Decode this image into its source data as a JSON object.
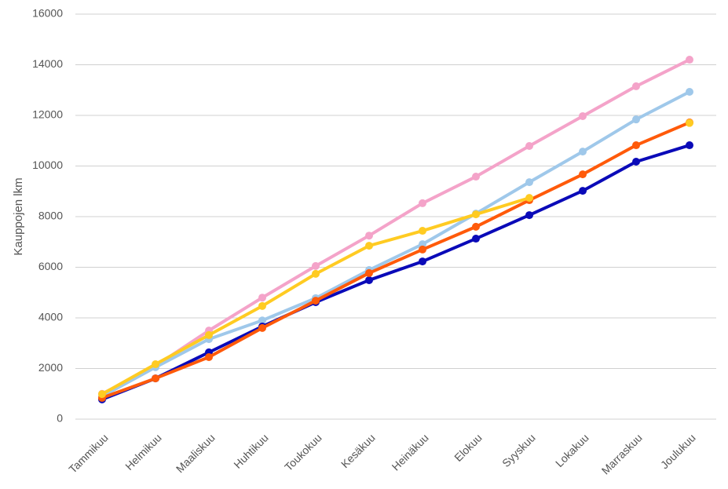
{
  "chart_data": {
    "type": "line",
    "y_label": "Kauppojen lkm",
    "categories": [
      "Tammikuu",
      "Helmikuu",
      "Maaliskuu",
      "Huhtikuu",
      "Toukokuu",
      "Kesäkuu",
      "Heinäkuu",
      "Elokuu",
      "Syyskuu",
      "Lokakuu",
      "Marraskuu",
      "Joulukuu"
    ],
    "series": [
      {
        "color": "#f4a3c9",
        "values": [
          1000,
          2100,
          3500,
          4800,
          6050,
          7250,
          8530,
          9580,
          10790,
          11970,
          13150,
          14200
        ]
      },
      {
        "color": "#9fc8ea",
        "values": [
          900,
          2050,
          3160,
          3900,
          4780,
          5890,
          6910,
          8120,
          9360,
          10570,
          11840,
          12930
        ]
      },
      {
        "color": "#0a0ab8",
        "values": [
          780,
          1610,
          2640,
          3660,
          4620,
          5490,
          6230,
          7130,
          8060,
          9020,
          10170,
          10820
        ]
      },
      {
        "color": "#ff5a0a",
        "values": [
          840,
          1610,
          2450,
          3600,
          4680,
          5770,
          6700,
          7600,
          8650,
          9670,
          10820,
          11720
        ]
      },
      {
        "color": "#ffcb22",
        "values": [
          990,
          2170,
          3320,
          4470,
          5740,
          6850,
          7440,
          8090,
          8740,
          null,
          null,
          11700
        ]
      }
    ],
    "ylim": [
      0,
      16000
    ],
    "yticks": [
      0,
      2000,
      4000,
      6000,
      8000,
      10000,
      12000,
      14000,
      16000
    ],
    "grid": true
  }
}
